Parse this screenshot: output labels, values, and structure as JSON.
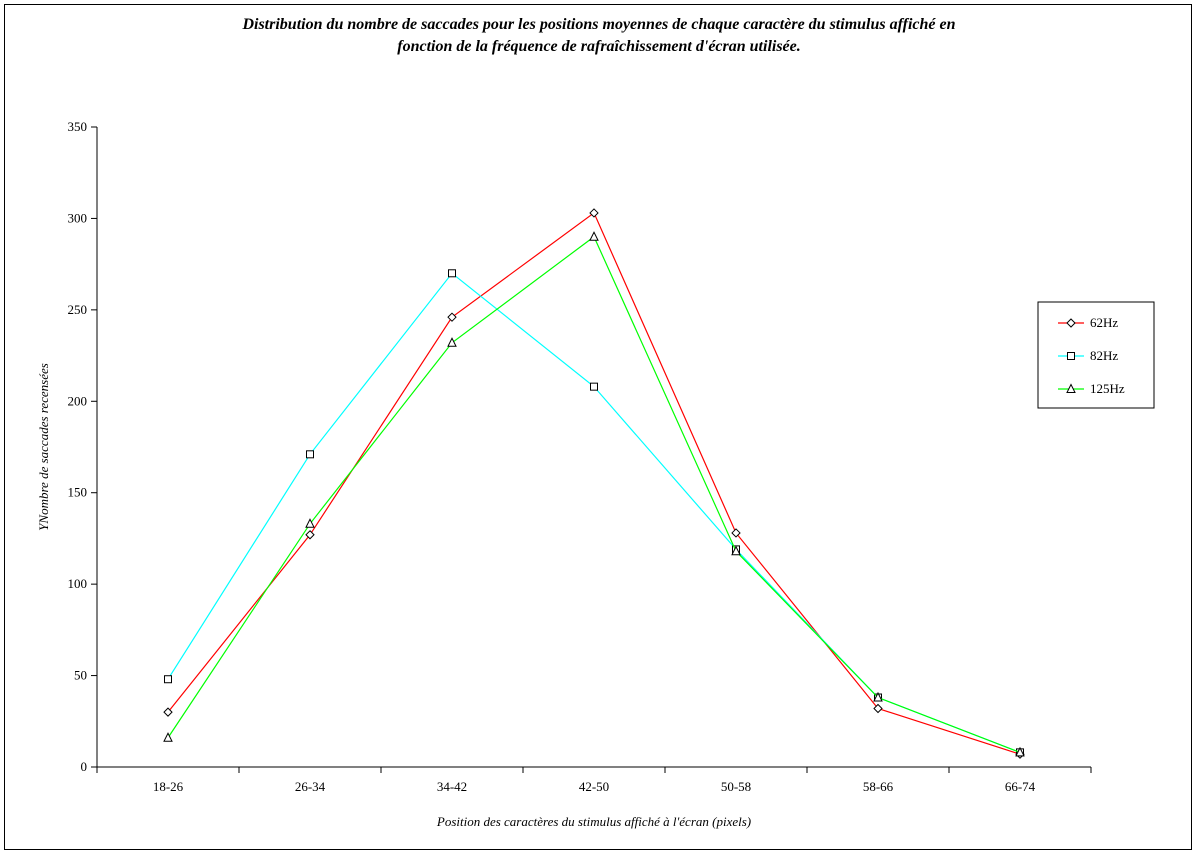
{
  "chart_data": {
    "type": "line",
    "title_lines": [
      "Distribution du nombre de saccades pour les positions moyennes de chaque caractère du stimulus affiché en",
      "fonction de la fréquence de rafraîchissement d'écran utilisée."
    ],
    "xlabel": "Position des caractères du stimulus affiché à l'écran (pixels)",
    "ylabel": "YNombre de saccades recensées",
    "categories": [
      "18-26",
      "26-34",
      "34-42",
      "42-50",
      "50-58",
      "58-66",
      "66-74"
    ],
    "ylim": [
      0,
      350
    ],
    "yticks": [
      0,
      50,
      100,
      150,
      200,
      250,
      300,
      350
    ],
    "grid": false,
    "legend_position": "right",
    "series": [
      {
        "name": "62Hz",
        "color": "#ff0000",
        "marker": "diamond",
        "values": [
          30,
          127,
          246,
          303,
          128,
          32,
          7
        ]
      },
      {
        "name": "82Hz",
        "color": "#00ffff",
        "marker": "square",
        "values": [
          48,
          171,
          270,
          208,
          119,
          38,
          8
        ]
      },
      {
        "name": "125Hz",
        "color": "#00ff00",
        "marker": "triangle",
        "values": [
          16,
          133,
          232,
          290,
          118,
          38,
          8
        ]
      }
    ]
  }
}
